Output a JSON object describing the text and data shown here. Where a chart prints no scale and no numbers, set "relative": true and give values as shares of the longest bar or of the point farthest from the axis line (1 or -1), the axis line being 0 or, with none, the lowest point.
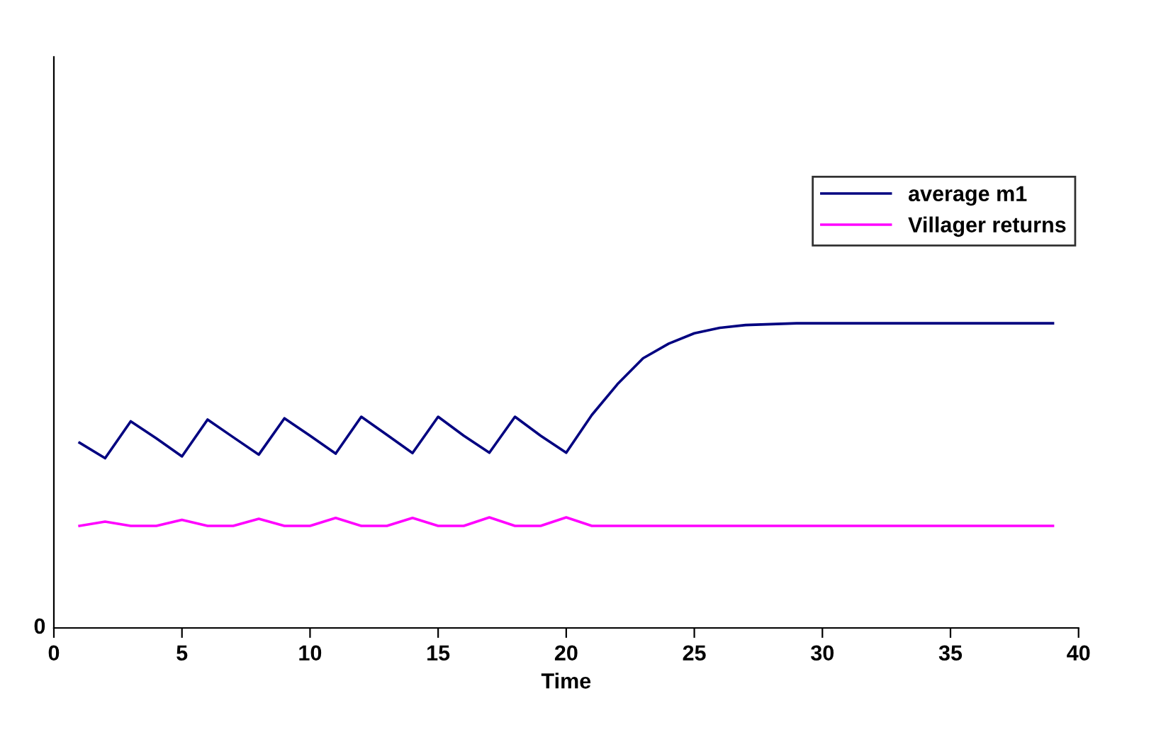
{
  "chart_data": {
    "type": "line",
    "relative": true,
    "xlabel": "Time",
    "xlim": [
      0,
      40
    ],
    "xticks": [
      0,
      5,
      10,
      15,
      20,
      25,
      30,
      35,
      40
    ],
    "legend": "right",
    "marker": "none",
    "line_style": "solid",
    "grid": false,
    "annotations": [
      "0"
    ],
    "x": [
      1,
      2,
      3,
      4,
      5,
      6,
      7,
      8,
      9,
      10,
      11,
      12,
      13,
      14,
      15,
      16,
      17,
      18,
      19,
      20,
      21,
      22,
      23,
      24,
      25,
      26,
      27,
      28,
      29,
      30,
      31,
      32,
      33,
      34,
      35,
      36,
      37,
      38,
      39
    ],
    "series": [
      {
        "name": "average m1",
        "color": "#000080",
        "values": [
          0.608,
          0.557,
          0.678,
          0.622,
          0.563,
          0.684,
          0.626,
          0.569,
          0.688,
          0.631,
          0.572,
          0.693,
          0.634,
          0.574,
          0.693,
          0.631,
          0.575,
          0.693,
          0.631,
          0.575,
          0.699,
          0.8,
          0.885,
          0.933,
          0.967,
          0.985,
          0.994,
          0.997,
          1,
          1,
          1,
          1,
          1,
          1,
          1,
          1,
          1,
          1,
          1
        ]
      },
      {
        "name": "Villager returns",
        "color": "#ff00ff",
        "values": [
          0.335,
          0.349,
          0.335,
          0.335,
          0.355,
          0.335,
          0.335,
          0.358,
          0.335,
          0.335,
          0.361,
          0.335,
          0.335,
          0.361,
          0.335,
          0.335,
          0.363,
          0.335,
          0.335,
          0.363,
          0.335,
          0.335,
          0.335,
          0.335,
          0.335,
          0.335,
          0.335,
          0.335,
          0.335,
          0.335,
          0.335,
          0.335,
          0.335,
          0.335,
          0.335,
          0.335,
          0.335,
          0.335,
          0.335
        ]
      }
    ]
  }
}
